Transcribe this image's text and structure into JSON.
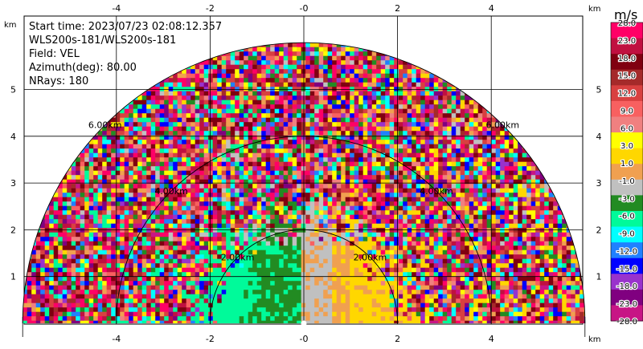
{
  "info": {
    "start_time": "Start time: 2023/07/23 02:08:12.357",
    "instrument": "WLS200s-181/WLS200s-181",
    "field": "Field: VEL",
    "azimuth": "Azimuth(deg): 80.00",
    "nrays": "NRays: 180"
  },
  "chart_data": {
    "type": "heatmap",
    "subtype": "RHI polar scan (half-disc)",
    "x_axis": {
      "unit_label": "km",
      "range": [
        -6,
        6
      ],
      "ticks": [
        -4,
        -2,
        0,
        2,
        4
      ],
      "tick_labels": [
        "-4",
        "-2",
        "-0",
        "2",
        "4"
      ]
    },
    "y_axis": {
      "unit_label": "km",
      "range": [
        0,
        6
      ],
      "ticks": [
        1,
        2,
        3,
        4,
        5
      ],
      "tick_labels": [
        "1",
        "2",
        "3",
        "4",
        "5"
      ]
    },
    "range_rings_km": [
      2,
      4,
      6
    ],
    "range_ring_labels": [
      "2.00km",
      "4.00km",
      "6.00km"
    ],
    "max_range_km": 6,
    "grid": true,
    "colorbar": {
      "title": "m/s",
      "labels": [
        "28.0",
        "23.0",
        "18.0",
        "15.0",
        "12.0",
        "9.0",
        "6.0",
        "3.0",
        "1.0",
        "-1.0",
        "-3.0",
        "-6.0",
        "-9.0",
        "-12.0",
        "-15.0",
        "-18.0",
        "-23.0",
        "-28.0"
      ],
      "colors": [
        "#ff0066",
        "#c01040",
        "#800010",
        "#a52a2a",
        "#d84040",
        "#f86060",
        "#f08080",
        "#ffff00",
        "#ffd700",
        "#f0a050",
        "#c0c0c0",
        "#228b22",
        "#00fa9a",
        "#00ffff",
        "#2080ff",
        "#0000ff",
        "#9932cc",
        "#800080",
        "#c71585"
      ]
    },
    "field_description": {
      "near_field_left_color": "#00fa9a",
      "near_field_mid_left_color": "#228b22",
      "near_field_center_color": "#c0c0c0",
      "near_field_right_color": "#ffd700",
      "near_field_mid_right_color": "#f0a050",
      "outer_noise": true
    }
  }
}
